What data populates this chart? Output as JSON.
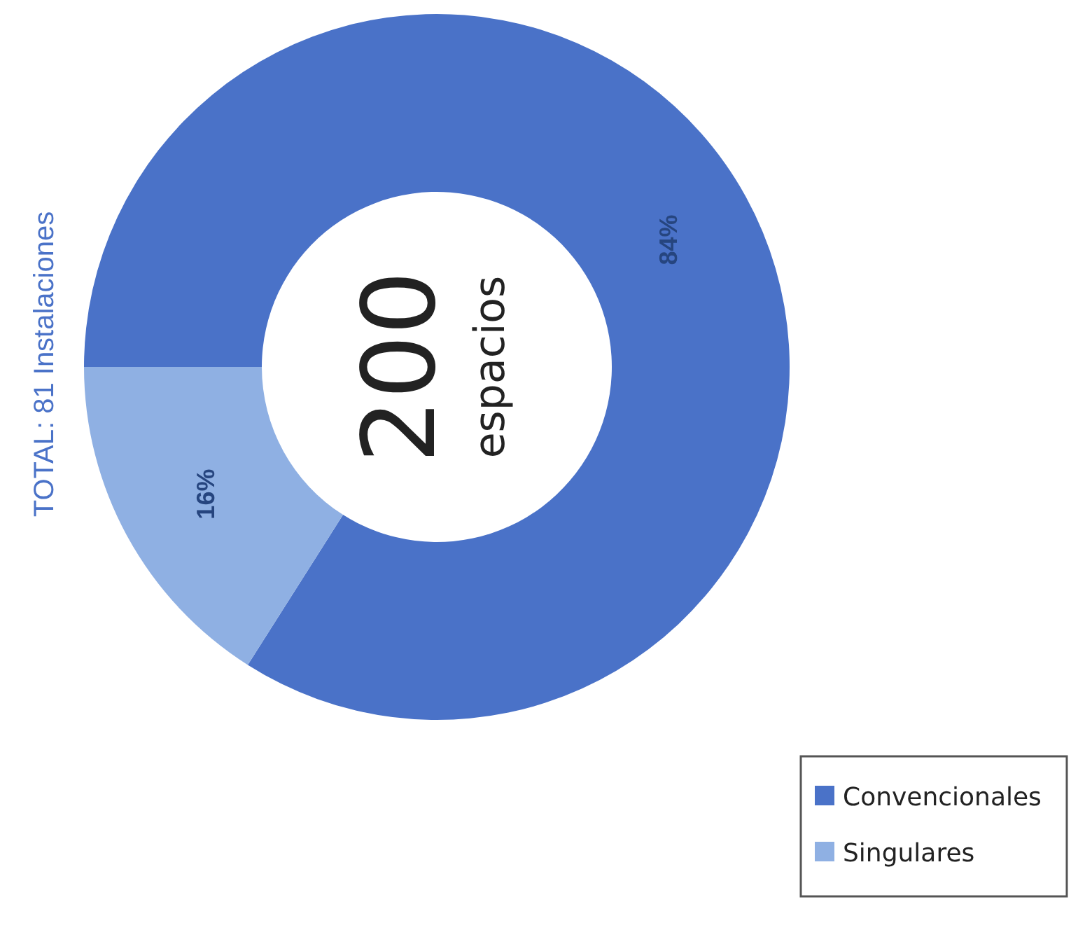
{
  "chart_data": {
    "type": "donut",
    "title": "TOTAL: 81 Instalaciones",
    "categories": [
      "Convencionales",
      "Singulares"
    ],
    "values": [
      84,
      16
    ],
    "colors": [
      "#4a72c8",
      "#8fb0e3"
    ],
    "value_labels": [
      "84%",
      "16%"
    ],
    "legend": "right",
    "annotations": [
      "200",
      "espacios"
    ]
  }
}
